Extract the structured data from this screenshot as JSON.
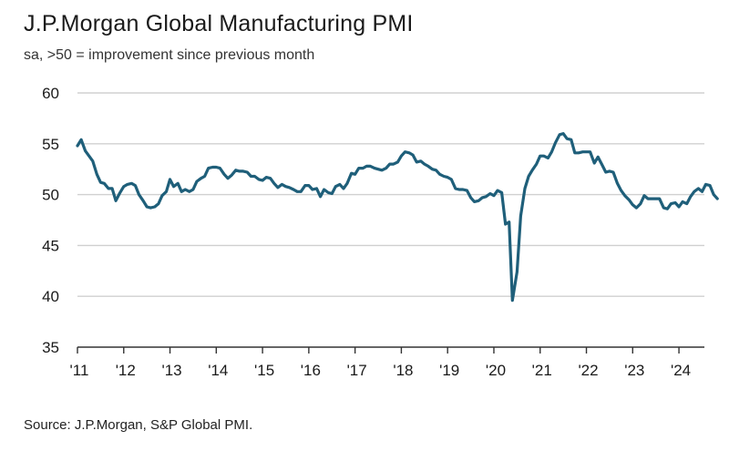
{
  "title": "J.P.Morgan Global Manufacturing PMI",
  "subtitle": "sa, >50 = improvement since previous month",
  "source": "Source: J.P.Morgan, S&P Global PMI.",
  "colors": {
    "line": "#1f5f7a",
    "grid": "#d0d0d0",
    "axis": "#333333"
  },
  "chart_data": {
    "type": "line",
    "title": "J.P.Morgan Global Manufacturing PMI",
    "ylim": [
      35,
      60
    ],
    "yticks": [
      35,
      40,
      45,
      50,
      55,
      60
    ],
    "xlim": [
      2011.0,
      2024.55
    ],
    "xticks": [
      {
        "value": 2011,
        "label": "'11"
      },
      {
        "value": 2012,
        "label": "'12"
      },
      {
        "value": 2013,
        "label": "'13"
      },
      {
        "value": 2014,
        "label": "'14"
      },
      {
        "value": 2015,
        "label": "'15"
      },
      {
        "value": 2016,
        "label": "'16"
      },
      {
        "value": 2017,
        "label": "'17"
      },
      {
        "value": 2018,
        "label": "'18"
      },
      {
        "value": 2019,
        "label": "'19"
      },
      {
        "value": 2020,
        "label": "'20"
      },
      {
        "value": 2021,
        "label": "'21"
      },
      {
        "value": 2022,
        "label": "'22"
      },
      {
        "value": 2023,
        "label": "'23"
      },
      {
        "value": 2024,
        "label": "'24"
      }
    ],
    "grid": "horizontal",
    "series": [
      {
        "points": [
          [
            2011.0,
            54.8
          ],
          [
            2011.08,
            55.4
          ],
          [
            2011.17,
            54.3
          ],
          [
            2011.25,
            53.8
          ],
          [
            2011.33,
            53.3
          ],
          [
            2011.42,
            52.0
          ],
          [
            2011.5,
            51.2
          ],
          [
            2011.58,
            51.1
          ],
          [
            2011.67,
            50.6
          ],
          [
            2011.75,
            50.6
          ],
          [
            2011.83,
            49.4
          ],
          [
            2011.92,
            50.2
          ],
          [
            2012.0,
            50.8
          ],
          [
            2012.08,
            51.0
          ],
          [
            2012.17,
            51.1
          ],
          [
            2012.25,
            50.9
          ],
          [
            2012.33,
            50.0
          ],
          [
            2012.42,
            49.4
          ],
          [
            2012.5,
            48.8
          ],
          [
            2012.58,
            48.7
          ],
          [
            2012.67,
            48.8
          ],
          [
            2012.75,
            49.1
          ],
          [
            2012.83,
            49.9
          ],
          [
            2012.92,
            50.3
          ],
          [
            2013.0,
            51.5
          ],
          [
            2013.08,
            50.8
          ],
          [
            2013.17,
            51.1
          ],
          [
            2013.25,
            50.3
          ],
          [
            2013.33,
            50.5
          ],
          [
            2013.42,
            50.3
          ],
          [
            2013.5,
            50.5
          ],
          [
            2013.58,
            51.3
          ],
          [
            2013.67,
            51.6
          ],
          [
            2013.75,
            51.8
          ],
          [
            2013.83,
            52.6
          ],
          [
            2013.92,
            52.7
          ],
          [
            2014.0,
            52.7
          ],
          [
            2014.08,
            52.6
          ],
          [
            2014.17,
            52.0
          ],
          [
            2014.25,
            51.6
          ],
          [
            2014.33,
            51.9
          ],
          [
            2014.42,
            52.4
          ],
          [
            2014.5,
            52.3
          ],
          [
            2014.58,
            52.3
          ],
          [
            2014.67,
            52.2
          ],
          [
            2014.75,
            51.8
          ],
          [
            2014.83,
            51.8
          ],
          [
            2014.92,
            51.5
          ],
          [
            2015.0,
            51.4
          ],
          [
            2015.08,
            51.7
          ],
          [
            2015.17,
            51.6
          ],
          [
            2015.25,
            51.1
          ],
          [
            2015.33,
            50.7
          ],
          [
            2015.42,
            51.0
          ],
          [
            2015.5,
            50.8
          ],
          [
            2015.58,
            50.7
          ],
          [
            2015.67,
            50.5
          ],
          [
            2015.75,
            50.3
          ],
          [
            2015.83,
            50.3
          ],
          [
            2015.92,
            50.9
          ],
          [
            2016.0,
            50.9
          ],
          [
            2016.08,
            50.5
          ],
          [
            2016.17,
            50.6
          ],
          [
            2016.25,
            49.8
          ],
          [
            2016.33,
            50.5
          ],
          [
            2016.42,
            50.2
          ],
          [
            2016.5,
            50.1
          ],
          [
            2016.58,
            50.8
          ],
          [
            2016.67,
            51.0
          ],
          [
            2016.75,
            50.6
          ],
          [
            2016.83,
            51.1
          ],
          [
            2016.92,
            52.1
          ],
          [
            2017.0,
            52.0
          ],
          [
            2017.08,
            52.6
          ],
          [
            2017.17,
            52.6
          ],
          [
            2017.25,
            52.8
          ],
          [
            2017.33,
            52.8
          ],
          [
            2017.42,
            52.6
          ],
          [
            2017.5,
            52.5
          ],
          [
            2017.58,
            52.4
          ],
          [
            2017.67,
            52.6
          ],
          [
            2017.75,
            53.0
          ],
          [
            2017.83,
            53.0
          ],
          [
            2017.92,
            53.2
          ],
          [
            2018.0,
            53.8
          ],
          [
            2018.08,
            54.2
          ],
          [
            2018.17,
            54.1
          ],
          [
            2018.25,
            53.9
          ],
          [
            2018.33,
            53.2
          ],
          [
            2018.42,
            53.3
          ],
          [
            2018.5,
            53.0
          ],
          [
            2018.58,
            52.8
          ],
          [
            2018.67,
            52.5
          ],
          [
            2018.75,
            52.4
          ],
          [
            2018.83,
            52.0
          ],
          [
            2018.92,
            51.8
          ],
          [
            2019.0,
            51.7
          ],
          [
            2019.08,
            51.5
          ],
          [
            2019.17,
            50.6
          ],
          [
            2019.25,
            50.5
          ],
          [
            2019.33,
            50.5
          ],
          [
            2019.42,
            50.4
          ],
          [
            2019.5,
            49.7
          ],
          [
            2019.58,
            49.3
          ],
          [
            2019.67,
            49.4
          ],
          [
            2019.75,
            49.7
          ],
          [
            2019.83,
            49.8
          ],
          [
            2019.92,
            50.1
          ],
          [
            2020.0,
            49.9
          ],
          [
            2020.08,
            50.4
          ],
          [
            2020.17,
            50.2
          ],
          [
            2020.25,
            47.1
          ],
          [
            2020.33,
            47.3
          ],
          [
            2020.4,
            39.6
          ],
          [
            2020.5,
            42.4
          ],
          [
            2020.58,
            47.9
          ],
          [
            2020.67,
            50.6
          ],
          [
            2020.75,
            51.8
          ],
          [
            2020.83,
            52.4
          ],
          [
            2020.92,
            53.0
          ],
          [
            2021.0,
            53.8
          ],
          [
            2021.08,
            53.8
          ],
          [
            2021.17,
            53.6
          ],
          [
            2021.25,
            54.2
          ],
          [
            2021.33,
            55.1
          ],
          [
            2021.42,
            55.9
          ],
          [
            2021.5,
            56.0
          ],
          [
            2021.58,
            55.5
          ],
          [
            2021.67,
            55.4
          ],
          [
            2021.75,
            54.1
          ],
          [
            2021.83,
            54.1
          ],
          [
            2021.92,
            54.2
          ],
          [
            2022.0,
            54.2
          ],
          [
            2022.08,
            54.2
          ],
          [
            2022.17,
            53.1
          ],
          [
            2022.25,
            53.7
          ],
          [
            2022.33,
            53.0
          ],
          [
            2022.42,
            52.2
          ],
          [
            2022.5,
            52.3
          ],
          [
            2022.58,
            52.2
          ],
          [
            2022.67,
            51.1
          ],
          [
            2022.75,
            50.4
          ],
          [
            2022.83,
            49.9
          ],
          [
            2022.92,
            49.5
          ],
          [
            2023.0,
            49.0
          ],
          [
            2023.08,
            48.7
          ],
          [
            2023.17,
            49.1
          ],
          [
            2023.25,
            49.9
          ],
          [
            2023.33,
            49.6
          ],
          [
            2023.42,
            49.6
          ],
          [
            2023.5,
            49.6
          ],
          [
            2023.58,
            49.6
          ],
          [
            2023.67,
            48.7
          ],
          [
            2023.75,
            48.6
          ],
          [
            2023.83,
            49.1
          ],
          [
            2023.92,
            49.2
          ],
          [
            2024.0,
            48.8
          ],
          [
            2024.08,
            49.3
          ],
          [
            2024.17,
            49.1
          ],
          [
            2024.25,
            49.8
          ],
          [
            2024.33,
            50.3
          ],
          [
            2024.42,
            50.6
          ],
          [
            2024.5,
            50.3
          ],
          [
            2024.58,
            51.0
          ],
          [
            2024.67,
            50.9
          ],
          [
            2024.75,
            50.0
          ],
          [
            2024.83,
            49.6
          ]
        ]
      }
    ]
  }
}
